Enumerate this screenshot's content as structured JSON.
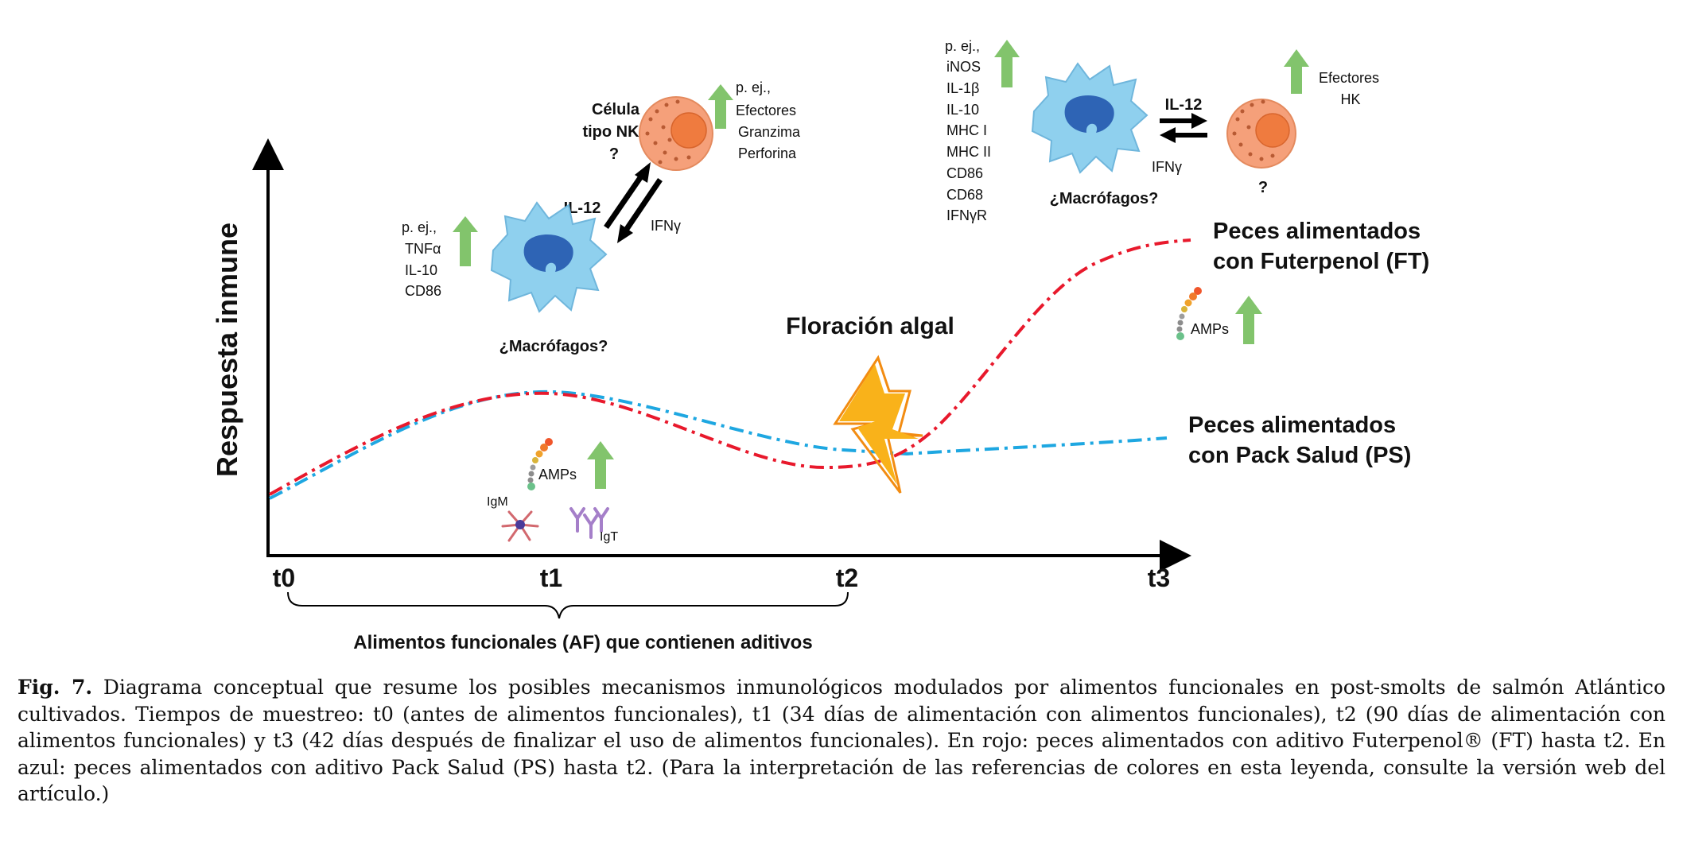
{
  "figure": {
    "y_axis_label": "Respuesta inmune",
    "time_points": [
      "t0",
      "t1",
      "t2",
      "t3"
    ],
    "brace_label": "Alimentos funcionales (AF) que contienen aditivos",
    "event_label": "Floración algal",
    "series": [
      {
        "name_line1": "Peces alimentados",
        "name_line2": "con Futerpenol (FT)",
        "color": "#e8192c"
      },
      {
        "name_line1": "Peces alimentados",
        "name_line2": "con Pack Salud (PS)",
        "color": "#1ea7e1"
      }
    ],
    "colors": {
      "macrophage": "#8fd0ee",
      "macrophage_nucleus": "#2e64b5",
      "nk_cell": "#f5a07a",
      "nk_nucleus": "#ef7b3f",
      "arrow_up": "#82c46c",
      "lightning": "#f9b21a"
    },
    "t1_panel": {
      "nk_title": [
        "Célula",
        "tipo NK",
        "?"
      ],
      "nk_effectors": [
        "p. ej.,",
        "Efectores",
        "Granzima",
        "Perforina"
      ],
      "il12": "IL-12",
      "ifng": "IFNγ",
      "macrophage_markers": [
        "p. ej.,",
        "TNFα",
        "IL-10",
        "CD86"
      ],
      "macrophage_label": "¿Macrófagos?",
      "amps": "AMPs",
      "igm": "IgM",
      "igt": "IgT"
    },
    "t3_panel": {
      "macrophage_markers": [
        "p. ej.,",
        "iNOS",
        "IL-1β",
        "IL-10",
        "MHC I",
        "MHC II",
        "CD86",
        "CD68",
        "IFNγR"
      ],
      "macrophage_label": "¿Macrófagos?",
      "il12": "IL-12",
      "ifng": "IFNγ",
      "nk_question": "?",
      "effectors": [
        "Efectores",
        "HK"
      ],
      "amps": "AMPs"
    }
  },
  "caption": {
    "label": "Fig. 7.",
    "text": " Diagrama conceptual que resume los posibles mecanismos inmunológicos modulados por alimentos funcionales en post-smolts de salmón Atlántico cultivados. Tiempos de muestreo: t0 (antes de alimentos funcionales), t1 (34 días de alimentación con alimentos funcionales), t2 (90 días de alimentación con alimentos funcionales) y t3 (42 días después de finalizar el uso de alimentos funcionales). En rojo: peces alimentados con aditivo Futerpenol® (FT) hasta t2. En azul: peces alimentados con aditivo Pack Salud (PS) hasta t2. (Para la interpretación de las referencias de colores en esta leyenda, consulte la versión  web del artículo.)"
  }
}
